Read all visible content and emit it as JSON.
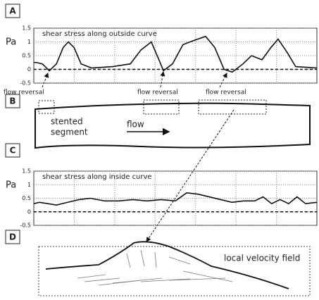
{
  "chart_data": [
    {
      "type": "line",
      "panel": "A",
      "title": "shear stress along outside curve",
      "ylabel": "Pa",
      "x": [
        0,
        1,
        3,
        5.5,
        8,
        10.4,
        12.2,
        14.2,
        16.7,
        20.4,
        27.9,
        34.1,
        37.8,
        41.5,
        44,
        45.8,
        49,
        52.7,
        56.5,
        60.7,
        63.9,
        67.2,
        70.1,
        73.9,
        76.9,
        80.6,
        83.8,
        86.3,
        89.6,
        92.5,
        100
      ],
      "series": [
        {
          "color": "#111111",
          "values": [
            0.25,
            0.25,
            0.2,
            -0.05,
            0.2,
            0.8,
            1.0,
            0.8,
            0.2,
            0.05,
            0.1,
            0.2,
            0.7,
            1.0,
            0.4,
            -0.05,
            0.2,
            0.9,
            1.05,
            1.2,
            0.8,
            0.0,
            -0.1,
            0.2,
            0.5,
            0.35,
            0.8,
            1.1,
            0.6,
            0.1,
            0.05
          ]
        }
      ],
      "xlim": [
        0,
        100
      ],
      "ylim": [
        -0.5,
        1.5
      ],
      "yticks": [
        1.5,
        1,
        0.5,
        0,
        -0.5
      ],
      "reference_line": 0,
      "grid": true
    },
    {
      "type": "line",
      "panel": "C",
      "title": "shear stress along inside curve",
      "ylabel": "Pa",
      "x": [
        0,
        2,
        5,
        8,
        12,
        16,
        20,
        25,
        30,
        35,
        40,
        45,
        50,
        54,
        58,
        62,
        66,
        70,
        74,
        78,
        81,
        84,
        87,
        90,
        93,
        96,
        100
      ],
      "series": [
        {
          "color": "#111111",
          "values": [
            0.3,
            0.35,
            0.3,
            0.25,
            0.35,
            0.45,
            0.5,
            0.4,
            0.4,
            0.45,
            0.4,
            0.45,
            0.4,
            0.7,
            0.65,
            0.55,
            0.45,
            0.35,
            0.4,
            0.4,
            0.55,
            0.3,
            0.45,
            0.3,
            0.55,
            0.3,
            0.35
          ]
        }
      ],
      "xlim": [
        0,
        100
      ],
      "ylim": [
        -0.5,
        1.5
      ],
      "yticks": [
        1.5,
        1,
        0.5,
        0,
        -0.5
      ],
      "reference_line": 0,
      "grid": true
    }
  ],
  "panel_b": {
    "label": "B",
    "flow_reversal": [
      "flow reversal",
      "flow reversal",
      "flow reversal"
    ],
    "segment": [
      "stented",
      "segment"
    ],
    "flow": "flow"
  },
  "panel_d": {
    "label": "D",
    "caption": "local velocity field"
  }
}
